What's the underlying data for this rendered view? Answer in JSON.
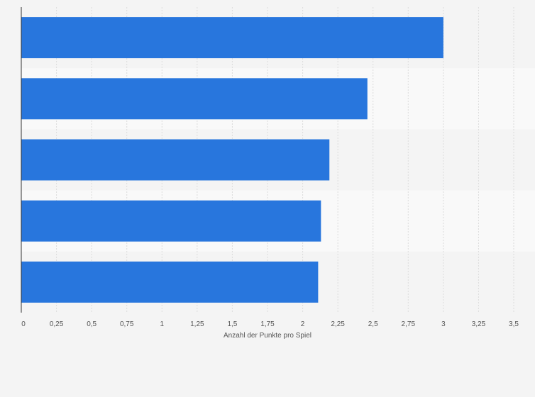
{
  "chart_data": {
    "type": "bar",
    "orientation": "horizontal",
    "categories": [
      "",
      "",
      "",
      "",
      ""
    ],
    "values": [
      3.0,
      2.46,
      2.19,
      2.13,
      2.11
    ],
    "xlabel": "Anzahl der Punkte pro Spiel",
    "ylabel": "",
    "xlim": [
      0,
      3.5
    ],
    "xticks": [
      0,
      0.25,
      0.5,
      0.75,
      1,
      1.25,
      1.5,
      1.75,
      2,
      2.25,
      2.5,
      2.75,
      3,
      3.25,
      3.5
    ],
    "xtick_labels": [
      "0",
      "0,25",
      "0,5",
      "0,75",
      "1",
      "1,25",
      "1,5",
      "1,75",
      "2",
      "2,25",
      "2,5",
      "2,75",
      "3",
      "3,25",
      "3,5"
    ],
    "grid": true,
    "legend": "none",
    "colors": {
      "bar": "#2876dd",
      "band_dark": "#f4f4f4",
      "band_light": "#f9f9f9",
      "gridline": "#dcdcdc",
      "axis": "#333333",
      "text": "#555555"
    }
  }
}
